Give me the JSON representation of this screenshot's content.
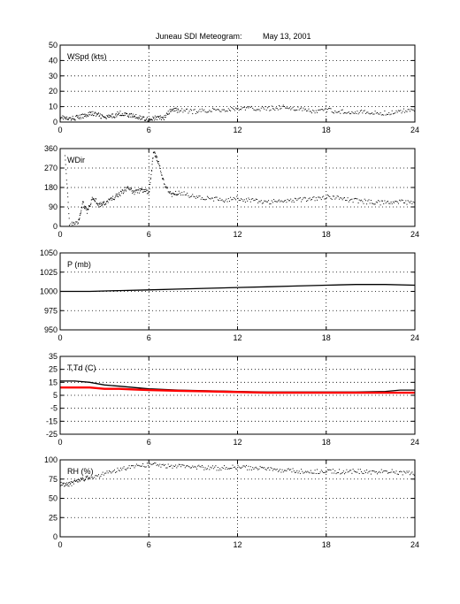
{
  "figure": {
    "title_station": "Juneau SDI Meteogram:",
    "title_date": "May 13, 2001"
  },
  "chart_data": [
    {
      "type": "scatter",
      "panel_label": "WSpd (kts)",
      "xlim": [
        0,
        24
      ],
      "xticks": [
        0,
        6,
        12,
        18,
        24
      ],
      "ylim": [
        0,
        50
      ],
      "yticks": [
        0,
        10,
        20,
        30,
        40,
        50
      ],
      "grid": true,
      "series": [
        {
          "color": "#000000",
          "style": "dots",
          "x": [
            0,
            0.5,
            1,
            1.5,
            2,
            2.5,
            3,
            3.5,
            4,
            4.5,
            5,
            5.5,
            6,
            6.5,
            7,
            7.5,
            8,
            9,
            10,
            11,
            12,
            13,
            14,
            15,
            16,
            17,
            18,
            19,
            20,
            21,
            22,
            23,
            24
          ],
          "y": [
            4,
            2,
            3,
            4,
            6,
            5,
            3,
            4,
            6,
            5,
            4,
            3,
            2,
            3,
            3,
            8,
            8,
            7,
            8,
            8,
            9,
            9,
            9,
            10,
            9,
            7,
            8,
            7,
            7,
            6,
            6,
            7,
            9
          ]
        }
      ]
    },
    {
      "type": "scatter",
      "panel_label": "WDir",
      "xlim": [
        0,
        24
      ],
      "xticks": [
        0,
        6,
        12,
        18,
        24
      ],
      "ylim": [
        0,
        360
      ],
      "yticks": [
        0,
        90,
        180,
        270,
        360
      ],
      "grid": true,
      "series": [
        {
          "color": "#000000",
          "style": "dots",
          "x": [
            0.3,
            0.6,
            1.2,
            1.5,
            1.8,
            2.2,
            2.6,
            3,
            3.5,
            4,
            4.5,
            5,
            5.5,
            6,
            6.3,
            6.6,
            7,
            7.5,
            8,
            9,
            10,
            11,
            12,
            13,
            14,
            15,
            16,
            17,
            18,
            19,
            20,
            21,
            22,
            23,
            24
          ],
          "y": [
            340,
            10,
            20,
            110,
            70,
            140,
            100,
            110,
            130,
            150,
            180,
            160,
            170,
            160,
            350,
            300,
            200,
            150,
            160,
            140,
            130,
            125,
            130,
            120,
            115,
            120,
            125,
            130,
            140,
            130,
            120,
            115,
            110,
            115,
            110
          ]
        }
      ]
    },
    {
      "type": "line",
      "panel_label": "P (mb)",
      "xlim": [
        0,
        24
      ],
      "xticks": [
        0,
        6,
        12,
        18,
        24
      ],
      "ylim": [
        950,
        1050
      ],
      "yticks": [
        950,
        975,
        1000,
        1025,
        1050
      ],
      "grid": true,
      "series": [
        {
          "color": "#000000",
          "style": "line",
          "x": [
            0,
            2,
            4,
            6,
            8,
            10,
            12,
            14,
            16,
            18,
            20,
            22,
            24
          ],
          "y": [
            1000,
            1000,
            1001,
            1002,
            1003,
            1004,
            1005,
            1006,
            1007,
            1008,
            1009,
            1009,
            1008
          ]
        }
      ]
    },
    {
      "type": "line",
      "panel_label": "T,Td (C)",
      "xlim": [
        0,
        24
      ],
      "xticks": [
        0,
        6,
        12,
        18,
        24
      ],
      "ylim": [
        -25,
        35
      ],
      "yticks": [
        -25,
        -15,
        -5,
        5,
        15,
        25,
        35
      ],
      "grid": true,
      "series": [
        {
          "color": "#000000",
          "style": "line",
          "x": [
            0,
            1,
            2,
            3,
            4,
            5,
            6,
            8,
            10,
            12,
            14,
            16,
            18,
            20,
            22,
            23,
            24
          ],
          "y": [
            16,
            16,
            15,
            13,
            12,
            11,
            10,
            9,
            8.5,
            8,
            7.5,
            7.5,
            7.5,
            7.5,
            8,
            9,
            9
          ]
        },
        {
          "color": "#ff0000",
          "style": "line",
          "x": [
            0,
            1,
            2,
            3,
            4,
            5,
            6,
            8,
            10,
            12,
            14,
            16,
            18,
            20,
            22,
            23,
            24
          ],
          "y": [
            11,
            11,
            11,
            10,
            10,
            9.5,
            9,
            8.5,
            8,
            7.5,
            7,
            7,
            7,
            7,
            7,
            7,
            7
          ]
        }
      ]
    },
    {
      "type": "scatter",
      "panel_label": "RH (%)",
      "xlim": [
        0,
        24
      ],
      "xticks": [
        0,
        6,
        12,
        18,
        24
      ],
      "ylim": [
        0,
        100
      ],
      "yticks": [
        0,
        25,
        50,
        75,
        100
      ],
      "grid": true,
      "series": [
        {
          "color": "#000000",
          "style": "dots",
          "x": [
            0,
            0.5,
            1,
            1.5,
            2,
            3,
            4,
            5,
            6,
            7,
            8,
            9,
            10,
            11,
            12,
            13,
            14,
            15,
            16,
            17,
            18,
            19,
            20,
            21,
            22,
            23,
            24
          ],
          "y": [
            70,
            68,
            72,
            75,
            78,
            82,
            88,
            93,
            94,
            93,
            92,
            91,
            90,
            90,
            91,
            90,
            89,
            87,
            86,
            85,
            86,
            85,
            86,
            85,
            86,
            84,
            83
          ]
        }
      ]
    }
  ]
}
